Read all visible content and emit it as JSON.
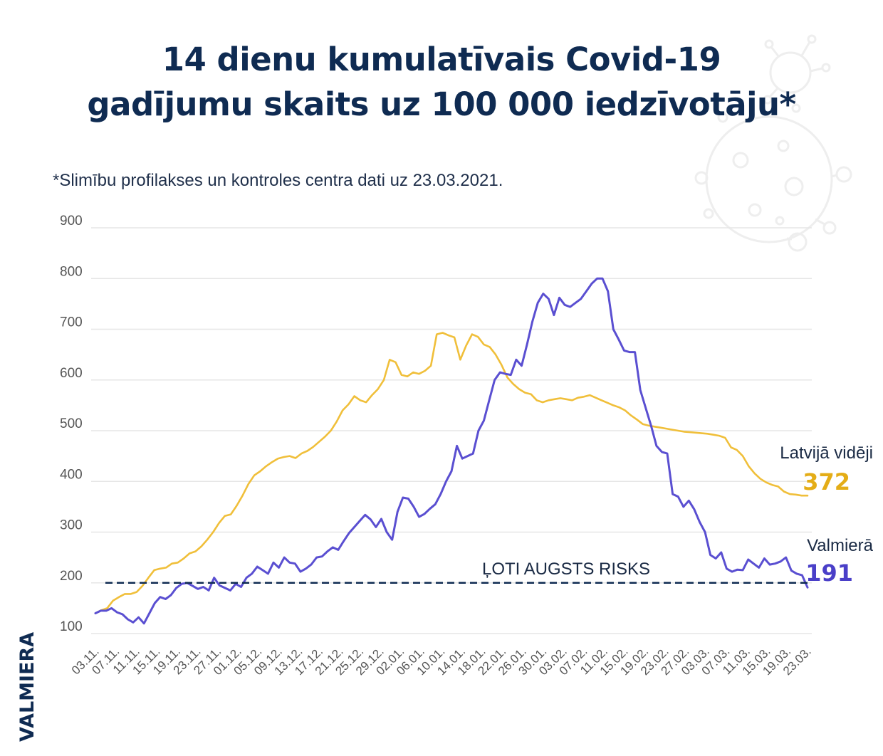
{
  "title_line1": "14 dienu kumulatīvais Covid-19",
  "title_line2": "gadījumu skaits uz 100 000 iedzīvotāju*",
  "subtitle": "*Slimību profilakses un kontroles centra dati uz 23.03.2021.",
  "brand": "VALMIERA",
  "colors": {
    "navy": "#0f2b52",
    "latvia": "#f0bf3a",
    "latvia_label": "#e4ad17",
    "valmiera": "#5a4fd1",
    "valmiera_label": "#4a3fc8",
    "grid": "#e6e6e6",
    "tick": "#555555"
  },
  "chart_data": {
    "type": "line",
    "title": "14 dienu kumulatīvais Covid-19 gadījumu skaits uz 100 000 iedzīvotāju*",
    "ylim": [
      80,
      900
    ],
    "y_ticks": [
      100,
      200,
      300,
      400,
      500,
      600,
      700,
      800,
      900
    ],
    "grid": true,
    "x_ticks": [
      "03.11.",
      "07.11.",
      "11.11.",
      "15.11.",
      "19.11.",
      "23.11.",
      "27.11.",
      "01.12.",
      "05.12.",
      "09.12.",
      "13.12.",
      "17.12.",
      "21.12.",
      "25.12.",
      "29.12.",
      "02.01.",
      "06.01.",
      "10.01.",
      "14.01.",
      "18.01.",
      "22.01.",
      "26.01.",
      "30.01.",
      "03.02.",
      "07.02.",
      "11.02.",
      "15.02.",
      "19.02.",
      "23.02.",
      "27.02.",
      "03.03.",
      "07.03.",
      "11.03.",
      "15.03.",
      "19.03.",
      "23.03."
    ],
    "threshold": {
      "value": 200,
      "label": "ĻOTI AUGSTS RISKS"
    },
    "series": [
      {
        "name": "Latvijā vidēji",
        "end_label": "372",
        "values": [
          140,
          146,
          150,
          165,
          172,
          178,
          178,
          182,
          194,
          210,
          225,
          228,
          230,
          238,
          240,
          248,
          258,
          262,
          272,
          285,
          300,
          318,
          332,
          335,
          352,
          372,
          395,
          412,
          420,
          430,
          438,
          445,
          448,
          450,
          446,
          455,
          460,
          468,
          478,
          488,
          500,
          518,
          540,
          552,
          568,
          560,
          556,
          570,
          582,
          600,
          640,
          635,
          610,
          607,
          615,
          612,
          618,
          628,
          690,
          693,
          688,
          684,
          640,
          668,
          690,
          685,
          670,
          665,
          650,
          630,
          605,
          592,
          582,
          575,
          572,
          560,
          556,
          560,
          562,
          564,
          562,
          560,
          565,
          567,
          570,
          565,
          560,
          555,
          550,
          546,
          540,
          530,
          522,
          513,
          510,
          508,
          506,
          504,
          502,
          500,
          498,
          497,
          496,
          495,
          494,
          492,
          490,
          486,
          467,
          462,
          450,
          430,
          416,
          405,
          398,
          393,
          390,
          380,
          375,
          374,
          372,
          372
        ]
      },
      {
        "name": "Valmierā",
        "end_label": "191",
        "values": [
          140,
          145,
          145,
          150,
          142,
          138,
          128,
          122,
          132,
          120,
          140,
          160,
          172,
          168,
          176,
          190,
          198,
          200,
          194,
          188,
          192,
          185,
          210,
          195,
          190,
          185,
          198,
          192,
          210,
          218,
          232,
          225,
          218,
          240,
          230,
          250,
          240,
          238,
          222,
          228,
          236,
          250,
          252,
          262,
          270,
          265,
          282,
          298,
          310,
          322,
          334,
          325,
          310,
          326,
          300,
          285,
          340,
          368,
          366,
          350,
          330,
          336,
          346,
          355,
          375,
          400,
          420,
          470,
          445,
          450,
          455,
          500,
          520,
          560,
          600,
          615,
          612,
          610,
          640,
          628,
          670,
          715,
          752,
          770,
          760,
          728,
          762,
          748,
          744,
          752,
          760,
          775,
          790,
          800,
          800,
          775,
          700,
          680,
          658,
          655,
          655,
          580,
          545,
          510,
          470,
          458,
          455,
          375,
          370,
          350,
          362,
          345,
          320,
          300,
          255,
          248,
          260,
          228,
          222,
          226,
          225,
          246,
          238,
          230,
          248,
          236,
          238,
          242,
          250,
          224,
          218,
          215,
          191
        ]
      }
    ]
  }
}
